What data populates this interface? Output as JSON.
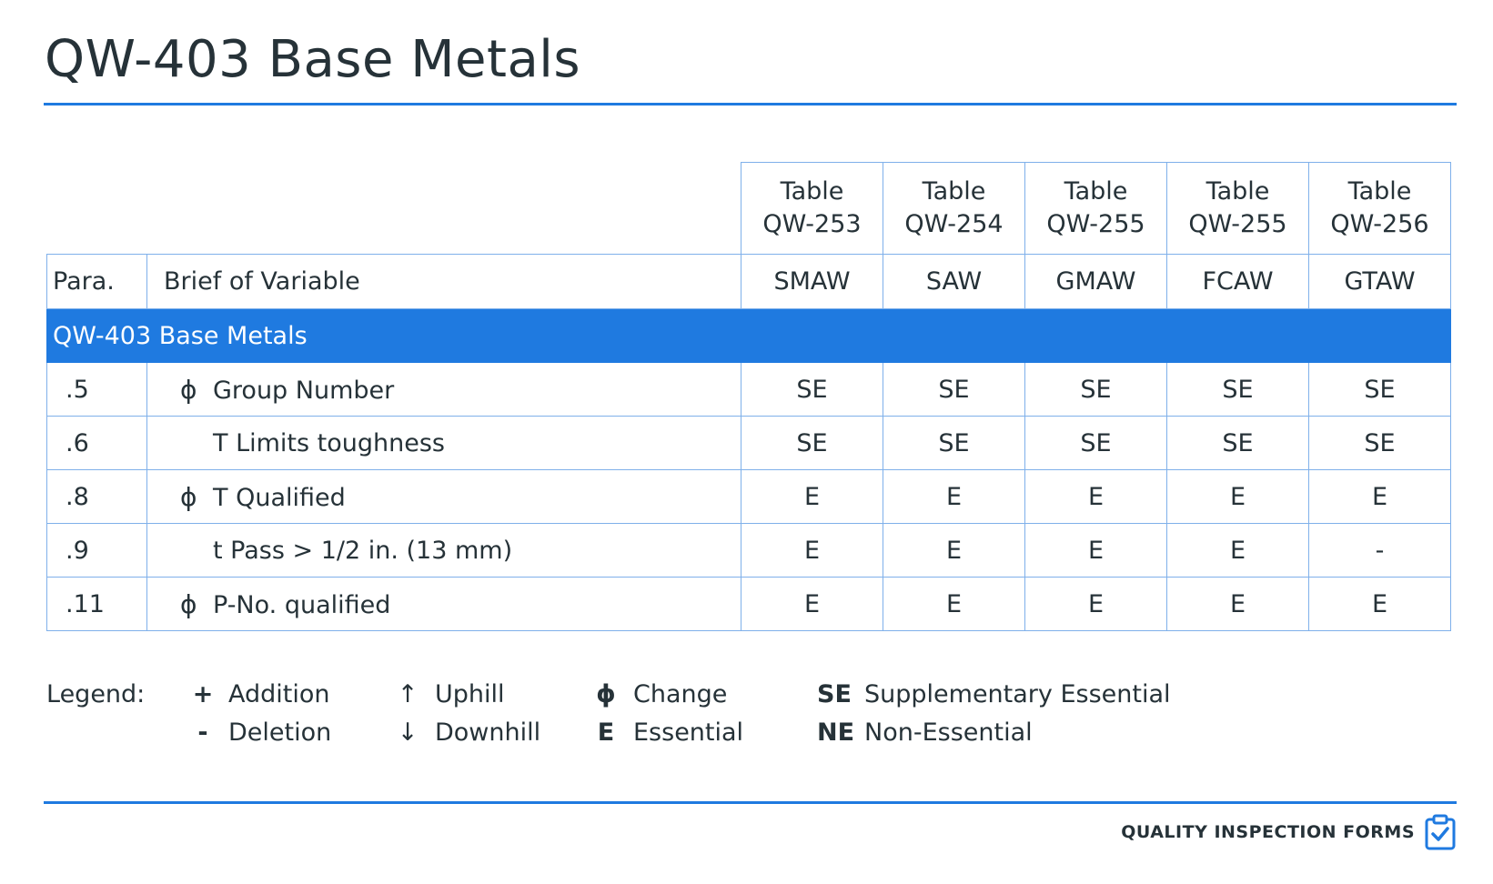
{
  "title": "QW-403 Base Metals",
  "table": {
    "processes": [
      {
        "table_line1": "Table",
        "table_line2": "QW-253",
        "process": "SMAW"
      },
      {
        "table_line1": "Table",
        "table_line2": "QW-254",
        "process": "SAW"
      },
      {
        "table_line1": "Table",
        "table_line2": "QW-255",
        "process": "GMAW"
      },
      {
        "table_line1": "Table",
        "table_line2": "QW-255",
        "process": "FCAW"
      },
      {
        "table_line1": "Table",
        "table_line2": "QW-256",
        "process": "GTAW"
      }
    ],
    "para_header": "Para.",
    "brief_header": "Brief of Variable",
    "section": "QW-403 Base Metals",
    "rows": [
      {
        "para": ".5",
        "symbol": "ϕ",
        "brief": "Group Number",
        "values": [
          "SE",
          "SE",
          "SE",
          "SE",
          "SE"
        ]
      },
      {
        "para": ".6",
        "symbol": "",
        "brief": "T Limits toughness",
        "values": [
          "SE",
          "SE",
          "SE",
          "SE",
          "SE"
        ]
      },
      {
        "para": ".8",
        "symbol": "ϕ",
        "brief": "T Qualified",
        "values": [
          "E",
          "E",
          "E",
          "E",
          "E"
        ]
      },
      {
        "para": ".9",
        "symbol": "",
        "brief": "t Pass > 1/2 in. (13 mm)",
        "values": [
          "E",
          "E",
          "E",
          "E",
          "-"
        ]
      },
      {
        "para": ".11",
        "symbol": "ϕ",
        "brief": "P-No. qualified",
        "values": [
          "E",
          "E",
          "E",
          "E",
          "E"
        ]
      }
    ]
  },
  "legend": {
    "label": "Legend:",
    "items": [
      {
        "symbol": "+",
        "text": "Addition"
      },
      {
        "symbol": "-",
        "text": "Deletion"
      },
      {
        "symbol": "↑",
        "text": "Uphill"
      },
      {
        "symbol": "↓",
        "text": "Downhill"
      },
      {
        "symbol": "ϕ",
        "text": "Change"
      },
      {
        "symbol": "E",
        "text": "Essential"
      },
      {
        "symbol": "SE",
        "text": "Supplementary Essential"
      },
      {
        "symbol": "NE",
        "text": "Non-Essential"
      }
    ]
  },
  "footer": {
    "brand": "QUALITY INSPECTION FORMS",
    "icon": "clipboard-check-icon"
  },
  "colors": {
    "accent": "#1f7ae0",
    "border": "#7fb0ea",
    "text": "#263238"
  }
}
